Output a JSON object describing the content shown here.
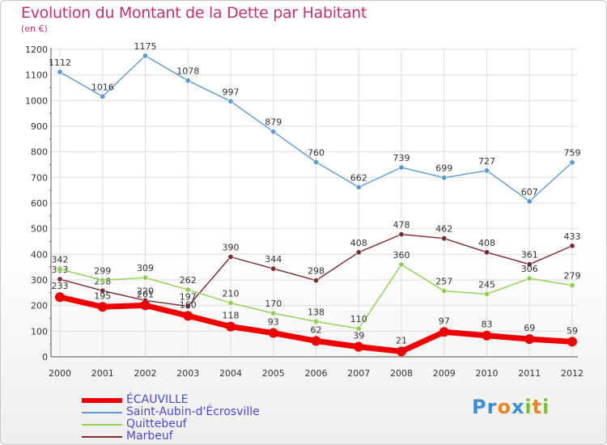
{
  "title": "Evolution du Montant de la Dette par Habitant",
  "unit": "(en €)",
  "logo": {
    "text": "Proxiti",
    "letters": [
      "P",
      "r",
      "o",
      "x",
      "i",
      "t",
      "i"
    ],
    "colors": [
      "#3a8fd6",
      "#3a8fd6",
      "#e8871e",
      "#3a8fd6",
      "#7cbf2e",
      "#e8871e",
      "#7cbf2e"
    ]
  },
  "chart_data": {
    "type": "line",
    "x": [
      "2000",
      "2001",
      "2002",
      "2003",
      "2004",
      "2005",
      "2006",
      "2007",
      "2008",
      "2009",
      "2010",
      "2011",
      "2012"
    ],
    "ylim": [
      0,
      1200
    ],
    "yticks": [
      0,
      100,
      200,
      300,
      400,
      500,
      600,
      700,
      800,
      900,
      1000,
      1100,
      1200
    ],
    "grid": true,
    "legend_position": "bottom-left",
    "series": [
      {
        "name": "ÉCAUVILLE",
        "color": "#ee0000",
        "values": [
          233,
          195,
          201,
          160,
          118,
          93,
          62,
          39,
          21,
          97,
          83,
          69,
          59
        ]
      },
      {
        "name": "Saint-Aubin-d'Écrosville",
        "color": "#5b9bd5",
        "values": [
          1112,
          1016,
          1175,
          1078,
          997,
          879,
          760,
          662,
          739,
          699,
          727,
          607,
          759
        ]
      },
      {
        "name": "Quittebeuf",
        "color": "#8fd14f",
        "values": [
          342,
          299,
          309,
          262,
          210,
          170,
          138,
          110,
          360,
          257,
          245,
          306,
          279
        ]
      },
      {
        "name": "Marbeuf",
        "color": "#7a2b32",
        "values": [
          303,
          258,
          220,
          197,
          390,
          344,
          298,
          408,
          478,
          462,
          408,
          361,
          433
        ]
      }
    ]
  }
}
